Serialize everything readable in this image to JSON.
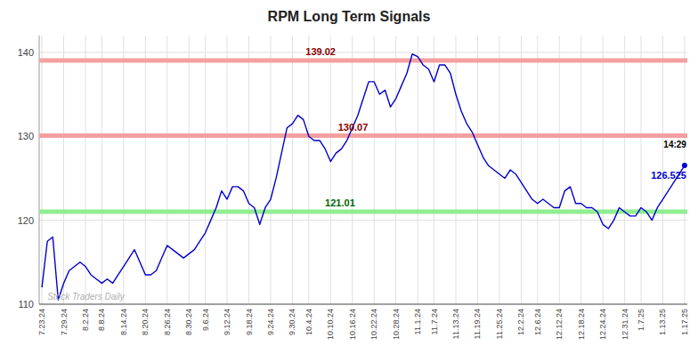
{
  "chart_data": {
    "type": "line",
    "title": "RPM Long Term Signals",
    "categories": [
      "7.23.24",
      null,
      null,
      null,
      "7.29.24",
      null,
      null,
      null,
      "8.2.24",
      null,
      null,
      "8.8.24",
      null,
      null,
      null,
      "8.14.24",
      null,
      null,
      null,
      "8.20.24",
      null,
      null,
      null,
      "8.26.24",
      null,
      null,
      null,
      "8.30.24",
      null,
      null,
      "9.6.24",
      null,
      null,
      null,
      "9.12.24",
      null,
      null,
      null,
      "9.18.24",
      null,
      null,
      null,
      "9.24.24",
      null,
      null,
      null,
      "9.30.24",
      null,
      null,
      "10.4.24",
      null,
      null,
      null,
      "10.10.24",
      null,
      null,
      null,
      "10.16.24",
      null,
      null,
      null,
      "10.22.24",
      null,
      null,
      null,
      "10.28.24",
      null,
      null,
      null,
      "11.1.24",
      null,
      null,
      "11.7.24",
      null,
      null,
      null,
      "11.13.24",
      null,
      null,
      null,
      "11.19.24",
      null,
      null,
      null,
      "11.25.24",
      null,
      null,
      null,
      "12.2.24",
      null,
      null,
      "12.6.24",
      null,
      null,
      null,
      "12.12.24",
      null,
      null,
      null,
      "12.18.24",
      null,
      null,
      null,
      "12.24.24",
      null,
      null,
      null,
      "12.31.24",
      null,
      null,
      "1.7.25",
      null,
      null,
      null,
      "1.13.25",
      null,
      null,
      null,
      "1.17.25"
    ],
    "values": [
      112.0,
      117.5,
      118.0,
      110.5,
      112.5,
      114.0,
      114.5,
      115.0,
      114.5,
      113.5,
      113.0,
      112.5,
      113.0,
      112.5,
      113.5,
      114.5,
      115.5,
      116.5,
      115.0,
      113.5,
      113.5,
      114.0,
      115.5,
      117.0,
      116.5,
      116.0,
      115.5,
      116.0,
      116.5,
      117.5,
      118.5,
      120.0,
      121.5,
      123.5,
      122.5,
      124.0,
      124.0,
      123.5,
      122.0,
      121.5,
      119.5,
      121.5,
      122.5,
      125.0,
      128.0,
      131.0,
      131.5,
      132.5,
      132.0,
      130.0,
      129.5,
      129.5,
      128.5,
      127.0,
      128.0,
      128.5,
      129.5,
      131.0,
      132.5,
      134.5,
      136.5,
      136.5,
      135.0,
      135.5,
      133.5,
      134.5,
      136.0,
      137.5,
      139.8,
      139.5,
      138.5,
      138.0,
      136.5,
      138.5,
      138.5,
      137.5,
      135.0,
      133.0,
      131.5,
      130.5,
      129.0,
      127.5,
      126.5,
      126.0,
      125.5,
      125.0,
      126.0,
      125.5,
      124.5,
      123.5,
      122.5,
      122.0,
      122.5,
      122.0,
      121.5,
      121.5,
      123.5,
      124.0,
      122.0,
      122.0,
      121.5,
      121.5,
      121.0,
      119.5,
      119.0,
      120.0,
      121.5,
      121.0,
      120.5,
      120.5,
      121.5,
      121.0,
      120.0,
      121.5,
      122.5,
      123.5,
      124.5,
      125.5,
      126.525
    ],
    "color": "#0000cc",
    "ylim": [
      110,
      142
    ],
    "yticks": [
      110,
      120,
      130,
      140
    ],
    "grid": true,
    "levels": [
      {
        "value": 139.02,
        "color": "#f4a0a0",
        "label_color": "#8b0000"
      },
      {
        "value": 130.07,
        "color": "#f4a0a0",
        "label_color": "#8b0000"
      },
      {
        "value": 121.01,
        "color": "#90ee90",
        "label_color": "#006400"
      }
    ],
    "annotations": {
      "last_time": "14:29",
      "watermark": "Stock Traders Daily"
    }
  }
}
